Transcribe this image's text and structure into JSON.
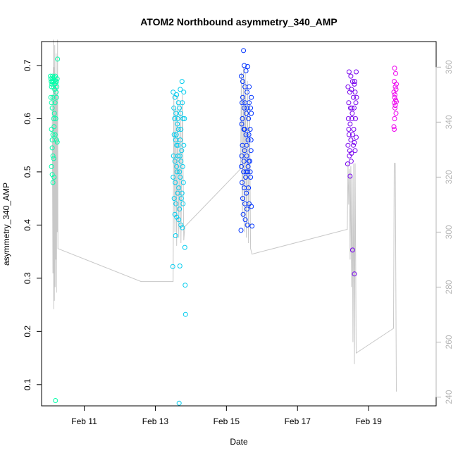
{
  "chart_data": {
    "type": "scatter",
    "title": "ATOM2 Northbound asymmetry_340_AMP",
    "xlabel": "Date",
    "ylabel": "asymmetry_340_AMP",
    "x_ticks": [
      {
        "label": "Feb 11",
        "day": 11
      },
      {
        "label": "Feb 13",
        "day": 13
      },
      {
        "label": "Feb 15",
        "day": 15
      },
      {
        "label": "Feb 17",
        "day": 17
      },
      {
        "label": "Feb 19",
        "day": 19
      }
    ],
    "xlim_days": [
      9.8,
      20.9
    ],
    "ylim": [
      0.06,
      0.745
    ],
    "y_ticks": [
      0.1,
      0.2,
      0.3,
      0.4,
      0.5,
      0.6,
      0.7
    ],
    "y_right_ticks": [
      240,
      260,
      280,
      300,
      320,
      340,
      360
    ],
    "y_right_lim": [
      236.8,
      369.3
    ],
    "grid": false,
    "legend": "none",
    "groups": [
      {
        "x_start": 10.0,
        "x_end": 10.3,
        "color": "#00ffaa",
        "points": [
          [
            10.05,
            0.68
          ],
          [
            10.06,
            0.675
          ],
          [
            10.07,
            0.67
          ],
          [
            10.08,
            0.66
          ],
          [
            10.09,
            0.665
          ],
          [
            10.1,
            0.67
          ],
          [
            10.11,
            0.68
          ],
          [
            10.12,
            0.675
          ],
          [
            10.13,
            0.66
          ],
          [
            10.14,
            0.67
          ],
          [
            10.15,
            0.678
          ],
          [
            10.16,
            0.665
          ],
          [
            10.17,
            0.655
          ],
          [
            10.18,
            0.672
          ],
          [
            10.19,
            0.68
          ],
          [
            10.2,
            0.666
          ],
          [
            10.21,
            0.65
          ],
          [
            10.22,
            0.67
          ],
          [
            10.23,
            0.66
          ],
          [
            10.24,
            0.675
          ],
          [
            10.06,
            0.64
          ],
          [
            10.08,
            0.63
          ],
          [
            10.1,
            0.62
          ],
          [
            10.12,
            0.64
          ],
          [
            10.14,
            0.6
          ],
          [
            10.16,
            0.61
          ],
          [
            10.18,
            0.63
          ],
          [
            10.2,
            0.6
          ],
          [
            10.22,
            0.64
          ],
          [
            10.25,
            0.712
          ],
          [
            10.08,
            0.58
          ],
          [
            10.1,
            0.56
          ],
          [
            10.12,
            0.57
          ],
          [
            10.15,
            0.585
          ],
          [
            10.18,
            0.57
          ],
          [
            10.22,
            0.56
          ],
          [
            10.24,
            0.556
          ],
          [
            10.1,
            0.545
          ],
          [
            10.12,
            0.53
          ],
          [
            10.14,
            0.525
          ],
          [
            10.08,
            0.51
          ],
          [
            10.1,
            0.495
          ],
          [
            10.12,
            0.48
          ],
          [
            10.15,
            0.49
          ],
          [
            10.19,
            0.07
          ]
        ]
      },
      {
        "x_start": 13.45,
        "x_end": 13.85,
        "color": "#00ccee",
        "points": [
          [
            13.5,
            0.65
          ],
          [
            13.55,
            0.64
          ],
          [
            13.6,
            0.645
          ],
          [
            13.65,
            0.63
          ],
          [
            13.7,
            0.655
          ],
          [
            13.75,
            0.67
          ],
          [
            13.8,
            0.65
          ],
          [
            13.52,
            0.62
          ],
          [
            13.58,
            0.61
          ],
          [
            13.63,
            0.6
          ],
          [
            13.68,
            0.62
          ],
          [
            13.72,
            0.58
          ],
          [
            13.78,
            0.6
          ],
          [
            13.53,
            0.57
          ],
          [
            13.57,
            0.56
          ],
          [
            13.6,
            0.55
          ],
          [
            13.65,
            0.58
          ],
          [
            13.7,
            0.56
          ],
          [
            13.74,
            0.54
          ],
          [
            13.8,
            0.55
          ],
          [
            13.51,
            0.53
          ],
          [
            13.55,
            0.52
          ],
          [
            13.6,
            0.51
          ],
          [
            13.64,
            0.53
          ],
          [
            13.68,
            0.5
          ],
          [
            13.72,
            0.52
          ],
          [
            13.77,
            0.51
          ],
          [
            13.5,
            0.49
          ],
          [
            13.56,
            0.48
          ],
          [
            13.61,
            0.5
          ],
          [
            13.66,
            0.47
          ],
          [
            13.7,
            0.49
          ],
          [
            13.75,
            0.46
          ],
          [
            13.79,
            0.48
          ],
          [
            13.53,
            0.45
          ],
          [
            13.58,
            0.44
          ],
          [
            13.63,
            0.46
          ],
          [
            13.68,
            0.43
          ],
          [
            13.73,
            0.45
          ],
          [
            13.78,
            0.44
          ],
          [
            13.55,
            0.42
          ],
          [
            13.6,
            0.415
          ],
          [
            13.66,
            0.41
          ],
          [
            13.72,
            0.4
          ],
          [
            13.76,
            0.395
          ],
          [
            13.57,
            0.38
          ],
          [
            13.49,
            0.322
          ],
          [
            13.69,
            0.323
          ],
          [
            13.83,
            0.358
          ],
          [
            13.84,
            0.287
          ],
          [
            13.85,
            0.232
          ],
          [
            13.67,
            0.065
          ],
          [
            13.62,
            0.59
          ],
          [
            13.54,
            0.6
          ],
          [
            13.71,
            0.61
          ],
          [
            13.76,
            0.63
          ],
          [
            13.82,
            0.6
          ],
          [
            13.59,
            0.57
          ],
          [
            13.64,
            0.55
          ],
          [
            13.69,
            0.53
          ]
        ]
      },
      {
        "x_start": 15.4,
        "x_end": 15.75,
        "color": "#0033ff",
        "points": [
          [
            15.48,
            0.728
          ],
          [
            15.5,
            0.7
          ],
          [
            15.55,
            0.69
          ],
          [
            15.6,
            0.698
          ],
          [
            15.42,
            0.68
          ],
          [
            15.46,
            0.67
          ],
          [
            15.52,
            0.66
          ],
          [
            15.58,
            0.65
          ],
          [
            15.64,
            0.66
          ],
          [
            15.7,
            0.64
          ],
          [
            15.44,
            0.63
          ],
          [
            15.5,
            0.62
          ],
          [
            15.56,
            0.61
          ],
          [
            15.62,
            0.6
          ],
          [
            15.68,
            0.62
          ],
          [
            15.43,
            0.59
          ],
          [
            15.49,
            0.58
          ],
          [
            15.55,
            0.57
          ],
          [
            15.61,
            0.56
          ],
          [
            15.67,
            0.58
          ],
          [
            15.45,
            0.55
          ],
          [
            15.51,
            0.54
          ],
          [
            15.57,
            0.53
          ],
          [
            15.63,
            0.52
          ],
          [
            15.69,
            0.54
          ],
          [
            15.42,
            0.51
          ],
          [
            15.48,
            0.5
          ],
          [
            15.54,
            0.49
          ],
          [
            15.6,
            0.5
          ],
          [
            15.66,
            0.52
          ],
          [
            15.44,
            0.48
          ],
          [
            15.5,
            0.47
          ],
          [
            15.56,
            0.46
          ],
          [
            15.62,
            0.47
          ],
          [
            15.68,
            0.49
          ],
          [
            15.46,
            0.45
          ],
          [
            15.52,
            0.44
          ],
          [
            15.58,
            0.43
          ],
          [
            15.64,
            0.44
          ],
          [
            15.7,
            0.435
          ],
          [
            15.47,
            0.42
          ],
          [
            15.53,
            0.41
          ],
          [
            15.59,
            0.4
          ],
          [
            15.41,
            0.39
          ],
          [
            15.72,
            0.398
          ],
          [
            15.45,
            0.6
          ],
          [
            15.51,
            0.58
          ],
          [
            15.57,
            0.55
          ],
          [
            15.63,
            0.57
          ],
          [
            15.69,
            0.56
          ],
          [
            15.43,
            0.53
          ],
          [
            15.49,
            0.52
          ],
          [
            15.55,
            0.5
          ],
          [
            15.61,
            0.51
          ],
          [
            15.67,
            0.5
          ],
          [
            15.46,
            0.64
          ],
          [
            15.52,
            0.63
          ],
          [
            15.58,
            0.62
          ],
          [
            15.64,
            0.63
          ],
          [
            15.7,
            0.61
          ]
        ]
      },
      {
        "x_start": 18.4,
        "x_end": 18.7,
        "color": "#7700ee",
        "points": [
          [
            18.45,
            0.688
          ],
          [
            18.5,
            0.68
          ],
          [
            18.55,
            0.67
          ],
          [
            18.6,
            0.665
          ],
          [
            18.65,
            0.688
          ],
          [
            18.42,
            0.66
          ],
          [
            18.47,
            0.65
          ],
          [
            18.52,
            0.655
          ],
          [
            18.57,
            0.64
          ],
          [
            18.62,
            0.65
          ],
          [
            18.44,
            0.63
          ],
          [
            18.49,
            0.62
          ],
          [
            18.54,
            0.61
          ],
          [
            18.59,
            0.62
          ],
          [
            18.64,
            0.63
          ],
          [
            18.43,
            0.6
          ],
          [
            18.48,
            0.59
          ],
          [
            18.53,
            0.6
          ],
          [
            18.58,
            0.58
          ],
          [
            18.63,
            0.6
          ],
          [
            18.45,
            0.57
          ],
          [
            18.5,
            0.56
          ],
          [
            18.55,
            0.57
          ],
          [
            18.6,
            0.555
          ],
          [
            18.65,
            0.565
          ],
          [
            18.42,
            0.55
          ],
          [
            18.47,
            0.54
          ],
          [
            18.52,
            0.535
          ],
          [
            18.57,
            0.55
          ],
          [
            18.62,
            0.54
          ],
          [
            18.46,
            0.53
          ],
          [
            18.51,
            0.52
          ],
          [
            18.41,
            0.515
          ],
          [
            18.48,
            0.492
          ],
          [
            18.55,
            0.353
          ],
          [
            18.6,
            0.308
          ],
          [
            18.66,
            0.64
          ],
          [
            18.61,
            0.67
          ],
          [
            18.53,
            0.62
          ],
          [
            18.44,
            0.58
          ]
        ]
      },
      {
        "x_start": 19.7,
        "x_end": 19.8,
        "color": "#ee00ee",
        "points": [
          [
            19.73,
            0.695
          ],
          [
            19.76,
            0.685
          ],
          [
            19.72,
            0.67
          ],
          [
            19.75,
            0.66
          ],
          [
            19.78,
            0.665
          ],
          [
            19.71,
            0.65
          ],
          [
            19.74,
            0.645
          ],
          [
            19.77,
            0.655
          ],
          [
            19.73,
            0.64
          ],
          [
            19.76,
            0.635
          ],
          [
            19.72,
            0.63
          ],
          [
            19.75,
            0.625
          ],
          [
            19.78,
            0.632
          ],
          [
            19.74,
            0.62
          ],
          [
            19.71,
            0.585
          ],
          [
            19.72,
            0.58
          ],
          [
            19.77,
            0.61
          ],
          [
            19.73,
            0.6
          ]
        ]
      }
    ],
    "series2_right_axis": [
      [
        10.1,
        350
      ],
      [
        10.12,
        285
      ],
      [
        10.13,
        370
      ],
      [
        10.14,
        272
      ],
      [
        10.15,
        360
      ],
      [
        10.16,
        275
      ],
      [
        10.17,
        368
      ],
      [
        10.18,
        280
      ],
      [
        10.19,
        355
      ],
      [
        10.2,
        290
      ],
      [
        10.21,
        365
      ],
      [
        10.22,
        278
      ],
      [
        10.23,
        350
      ],
      [
        10.24,
        300
      ],
      [
        10.25,
        370
      ],
      [
        10.26,
        294
      ],
      [
        12.6,
        282
      ],
      [
        13.5,
        282
      ],
      [
        13.52,
        350
      ],
      [
        13.55,
        300
      ],
      [
        13.58,
        345
      ],
      [
        13.6,
        295
      ],
      [
        13.63,
        350
      ],
      [
        13.66,
        298
      ],
      [
        13.7,
        348
      ],
      [
        13.72,
        296
      ],
      [
        13.76,
        350
      ],
      [
        13.8,
        297
      ],
      [
        13.83,
        302
      ],
      [
        15.4,
        323
      ],
      [
        15.42,
        358
      ],
      [
        15.45,
        305
      ],
      [
        15.48,
        360
      ],
      [
        15.5,
        300
      ],
      [
        15.53,
        358
      ],
      [
        15.56,
        298
      ],
      [
        15.59,
        355
      ],
      [
        15.62,
        296
      ],
      [
        15.65,
        350
      ],
      [
        15.68,
        294
      ],
      [
        15.72,
        292
      ],
      [
        18.4,
        301
      ],
      [
        18.42,
        325
      ],
      [
        18.44,
        310
      ],
      [
        18.46,
        323
      ],
      [
        18.48,
        290
      ],
      [
        18.5,
        324
      ],
      [
        18.52,
        280
      ],
      [
        18.54,
        320
      ],
      [
        18.56,
        260
      ],
      [
        18.58,
        325
      ],
      [
        18.6,
        252
      ],
      [
        18.62,
        325
      ],
      [
        18.65,
        256
      ],
      [
        19.7,
        265
      ],
      [
        19.72,
        325
      ],
      [
        19.75,
        325
      ],
      [
        19.78,
        242
      ]
    ]
  }
}
